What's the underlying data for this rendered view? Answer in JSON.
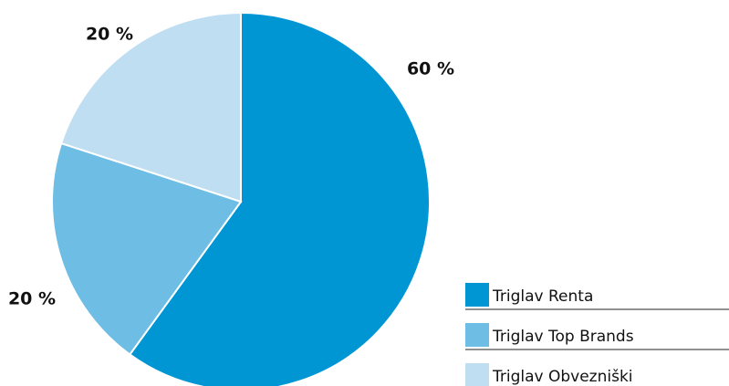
{
  "chart_data": {
    "type": "pie",
    "categories": [
      "Triglav Renta",
      "Triglav Top Brands",
      "Triglav Obvezniški"
    ],
    "values": [
      60,
      20,
      20
    ],
    "value_labels": [
      "60 %",
      "20 %",
      "20 %"
    ],
    "colors": [
      "#0095d3",
      "#6dbde5",
      "#c0def1"
    ]
  }
}
